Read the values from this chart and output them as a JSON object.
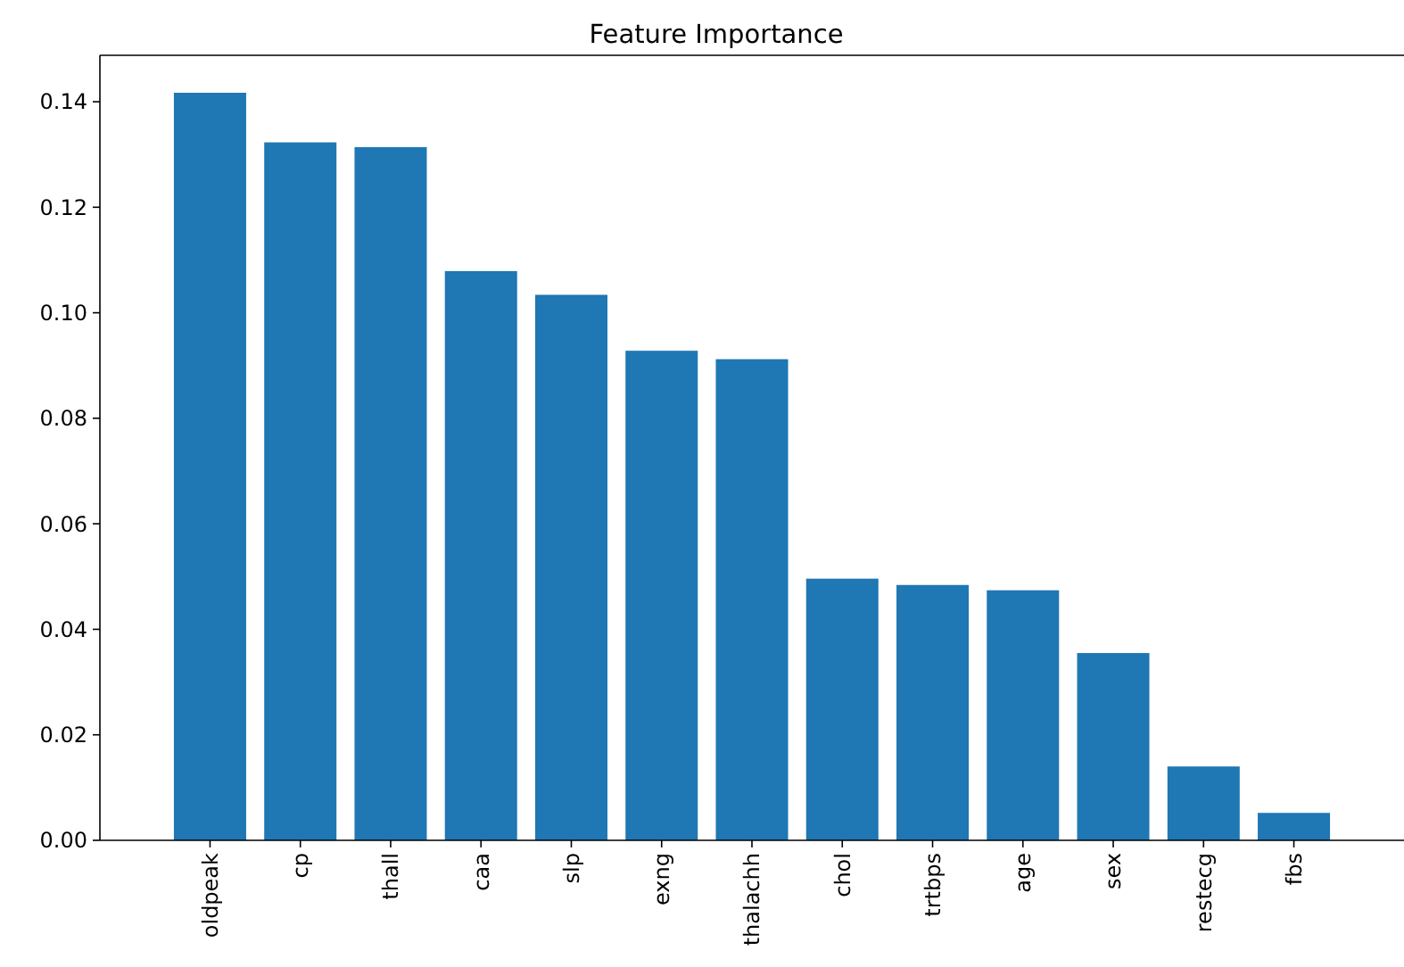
{
  "chart_data": {
    "type": "bar",
    "title": "Feature Importance",
    "categories": [
      "oldpeak",
      "cp",
      "thall",
      "caa",
      "slp",
      "exng",
      "thalachh",
      "chol",
      "trtbps",
      "age",
      "sex",
      "restecg",
      "fbs"
    ],
    "values": [
      0.1417,
      0.1323,
      0.1314,
      0.1079,
      0.1034,
      0.0928,
      0.0912,
      0.0496,
      0.0484,
      0.0474,
      0.0355,
      0.014,
      0.0052
    ],
    "color": "#1f77b4",
    "ylim": [
      0,
      0.1488
    ],
    "yticks": [
      {
        "value": 0,
        "label": "0.00"
      },
      {
        "value": 0.02,
        "label": "0.02"
      },
      {
        "value": 0.04,
        "label": "0.04"
      },
      {
        "value": 0.06,
        "label": "0.06"
      },
      {
        "value": 0.08,
        "label": "0.08"
      },
      {
        "value": 0.1,
        "label": "0.10"
      },
      {
        "value": 0.12,
        "label": "0.12"
      },
      {
        "value": 0.14,
        "label": "0.14"
      }
    ],
    "grid": false
  }
}
